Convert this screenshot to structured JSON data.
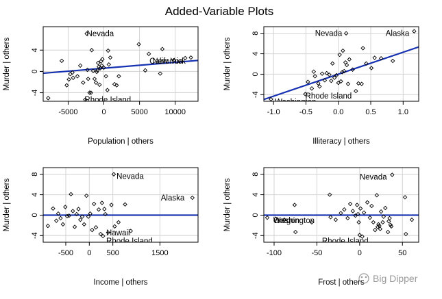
{
  "figure": {
    "title": "Added-Variable Plots",
    "watermark": "Big Dipper",
    "colors": {
      "fit_line": "#1530b0",
      "grid": "#d3d3d3",
      "points": "#000000",
      "watermark": "#9a9a9a"
    }
  },
  "chart_data": [
    {
      "type": "scatter",
      "xlabel": "Population | others",
      "ylabel": "Murder  | others",
      "xlim": [
        -8500,
        13200
      ],
      "ylim": [
        -5.6,
        8.4
      ],
      "xticks": [
        -5000,
        0,
        5000,
        10000
      ],
      "xtick_labels": [
        "-5000",
        "0",
        "5000",
        "10000"
      ],
      "yticks": [
        -4,
        0,
        4
      ],
      "ytick_labels": [
        "-4",
        "0",
        "4"
      ],
      "grid": true,
      "fit_line": {
        "intercept": 0.6,
        "slope": 0.000111
      },
      "annotations": [
        {
          "text": "Nevada",
          "x": -2400,
          "y": 7.1,
          "anchor": "start"
        },
        {
          "text": "California",
          "x": 6400,
          "y": 2.0,
          "anchor": "start"
        },
        {
          "text": "New York",
          "x": 6800,
          "y": 2.0,
          "anchor": "start"
        },
        {
          "text": "Rhode Island",
          "x": -2700,
          "y": -5.3,
          "anchor": "start"
        }
      ],
      "points": [
        [
          -7800,
          -5.0
        ],
        [
          -5900,
          2.0
        ],
        [
          -5200,
          -2.6
        ],
        [
          -4900,
          -1.5
        ],
        [
          -4700,
          -0.5
        ],
        [
          -4400,
          -0.2
        ],
        [
          -4300,
          -1.2
        ],
        [
          -3700,
          -0.9
        ],
        [
          -3300,
          1.1
        ],
        [
          -2900,
          -2.1
        ],
        [
          -2600,
          -5.3
        ],
        [
          -2400,
          7.1
        ],
        [
          -2300,
          0.3
        ],
        [
          -2200,
          -1.4
        ],
        [
          -2000,
          -4.0
        ],
        [
          -1800,
          -4.0
        ],
        [
          -1700,
          4.0
        ],
        [
          -1500,
          0.1
        ],
        [
          -1300,
          -1.4
        ],
        [
          -1100,
          -2.1
        ],
        [
          -1000,
          -0.1
        ],
        [
          -900,
          0.2
        ],
        [
          -800,
          1.6
        ],
        [
          -700,
          0.9
        ],
        [
          -600,
          -2.5
        ],
        [
          -500,
          0.6
        ],
        [
          -400,
          1.9
        ],
        [
          -300,
          1.1
        ],
        [
          -200,
          2.3
        ],
        [
          0,
          0.7
        ],
        [
          300,
          -0.9
        ],
        [
          500,
          -3.5
        ],
        [
          600,
          3.9
        ],
        [
          700,
          1.3
        ],
        [
          900,
          2.6
        ],
        [
          1500,
          -2.4
        ],
        [
          1800,
          -2.6
        ],
        [
          2100,
          -0.9
        ],
        [
          4900,
          5.1
        ],
        [
          5800,
          0.2
        ],
        [
          6300,
          3.3
        ],
        [
          7900,
          -0.4
        ],
        [
          8200,
          4.2
        ],
        [
          9800,
          2.1
        ],
        [
          11400,
          2.5
        ],
        [
          12200,
          2.6
        ]
      ]
    },
    {
      "type": "scatter",
      "xlabel": "Illiteracy | others",
      "ylabel": "Murder  | others",
      "xlim": [
        -1.15,
        1.24
      ],
      "ylim": [
        -5.3,
        9.3
      ],
      "xticks": [
        -1.0,
        -0.5,
        0.0,
        0.5,
        1.0
      ],
      "xtick_labels": [
        "-1.0",
        "-0.5",
        "0.0",
        "0.5",
        "1.0"
      ],
      "yticks": [
        -4,
        0,
        4,
        8
      ],
      "ytick_labels": [
        "-4",
        "0",
        "4",
        "8"
      ],
      "grid": true,
      "fit_line": {
        "intercept": 0.0,
        "slope": 4.3
      },
      "annotations": [
        {
          "text": "Nevada",
          "x": -0.36,
          "y": 8.0,
          "anchor": "start"
        },
        {
          "text": "Alaska",
          "x": 0.73,
          "y": 8.0,
          "anchor": "start"
        },
        {
          "text": "Rhode Island",
          "x": -0.51,
          "y": -4.2,
          "anchor": "start"
        },
        {
          "text": "Washington",
          "x": -0.98,
          "y": -5.4,
          "anchor": "start"
        }
      ],
      "points": [
        [
          -1.04,
          -4.9
        ],
        [
          -0.51,
          -3.9
        ],
        [
          -0.47,
          -1.5
        ],
        [
          -0.41,
          -2.8
        ],
        [
          -0.38,
          0.5
        ],
        [
          -0.36,
          -0.4
        ],
        [
          -0.31,
          -1.8
        ],
        [
          -0.29,
          -2.4
        ],
        [
          -0.25,
          0.1
        ],
        [
          -0.21,
          -1.2
        ],
        [
          -0.18,
          0.2
        ],
        [
          -0.14,
          -0.1
        ],
        [
          -0.11,
          -1.3
        ],
        [
          -0.09,
          2.1
        ],
        [
          -0.06,
          -0.7
        ],
        [
          -0.03,
          -0.2
        ],
        [
          0.0,
          -1.7
        ],
        [
          0.02,
          3.8
        ],
        [
          0.04,
          -1.4
        ],
        [
          0.06,
          0.4
        ],
        [
          0.07,
          4.6
        ],
        [
          0.09,
          0.6
        ],
        [
          0.11,
          2.3
        ],
        [
          0.12,
          8.0
        ],
        [
          0.13,
          1.8
        ],
        [
          0.15,
          -1.9
        ],
        [
          0.17,
          2.9
        ],
        [
          0.22,
          0.9
        ],
        [
          0.27,
          -3.3
        ],
        [
          0.31,
          -1.8
        ],
        [
          0.36,
          -1.9
        ],
        [
          0.38,
          5.1
        ],
        [
          0.43,
          2.1
        ],
        [
          0.51,
          1.2
        ],
        [
          0.56,
          3.2
        ],
        [
          0.66,
          3.1
        ],
        [
          0.84,
          2.6
        ],
        [
          1.17,
          8.4
        ]
      ]
    },
    {
      "type": "scatter",
      "xlabel": "Income | others",
      "ylabel": "Murder  | others",
      "xlim": [
        -980,
        2310
      ],
      "ylim": [
        -5.3,
        9.3
      ],
      "xticks": [
        -500,
        0,
        500,
        1500
      ],
      "xtick_labels": [
        "-500",
        "0",
        "500",
        "1500"
      ],
      "yticks": [
        -4,
        0,
        4,
        8
      ],
      "ytick_labels": [
        "-4",
        "0",
        "4",
        "8"
      ],
      "grid": true,
      "fit_line": {
        "intercept": 0.0,
        "slope": 0.0
      },
      "annotations": [
        {
          "text": "Nevada",
          "x": 580,
          "y": 7.6,
          "anchor": "start"
        },
        {
          "text": "Alaska",
          "x": 1520,
          "y": 3.4,
          "anchor": "start"
        },
        {
          "text": "Hawaii",
          "x": 360,
          "y": -3.4,
          "anchor": "start"
        },
        {
          "text": "Rhode Island",
          "x": 360,
          "y": -5.0,
          "anchor": "start"
        }
      ],
      "points": [
        [
          -880,
          -2.1
        ],
        [
          -770,
          1.3
        ],
        [
          -700,
          -1.1
        ],
        [
          -660,
          0.3
        ],
        [
          -610,
          -0.6
        ],
        [
          -560,
          -1.8
        ],
        [
          -510,
          1.6
        ],
        [
          -470,
          -0.2
        ],
        [
          -430,
          -0.1
        ],
        [
          -390,
          4.1
        ],
        [
          -350,
          0.8
        ],
        [
          -310,
          -2.3
        ],
        [
          -270,
          0.2
        ],
        [
          -230,
          1.2
        ],
        [
          -190,
          -0.9
        ],
        [
          -150,
          -0.3
        ],
        [
          -110,
          -1.8
        ],
        [
          -60,
          3.8
        ],
        [
          -20,
          -0.3
        ],
        [
          20,
          0.3
        ],
        [
          60,
          -2.9
        ],
        [
          100,
          2.2
        ],
        [
          140,
          -2.4
        ],
        [
          200,
          1.1
        ],
        [
          240,
          -3.7
        ],
        [
          270,
          2.4
        ],
        [
          290,
          -4.1
        ],
        [
          320,
          1.2
        ],
        [
          340,
          0.2
        ],
        [
          400,
          -3.4
        ],
        [
          470,
          2.0
        ],
        [
          520,
          8.0
        ],
        [
          540,
          -2.2
        ],
        [
          620,
          -1.4
        ],
        [
          760,
          2.1
        ],
        [
          880,
          -3.1
        ],
        [
          2190,
          3.4
        ]
      ]
    },
    {
      "type": "scatter",
      "xlabel": "Frost | others",
      "ylabel": "Murder  | others",
      "xlim": [
        -112,
        69
      ],
      "ylim": [
        -5.3,
        9.3
      ],
      "xticks": [
        -100,
        -50,
        0,
        50
      ],
      "xtick_labels": [
        "-100",
        "-50",
        "0",
        "50"
      ],
      "yticks": [
        -4,
        0,
        4,
        8
      ],
      "ytick_labels": [
        "-4",
        "0",
        "4",
        "8"
      ],
      "grid": true,
      "fit_line": {
        "intercept": 0.0,
        "slope": 0.0
      },
      "annotations": [
        {
          "text": "Nevada",
          "x": 0,
          "y": 7.5,
          "anchor": "start"
        },
        {
          "text": "Washington",
          "x": -101,
          "y": -1.0,
          "anchor": "start"
        },
        {
          "text": "Oregon",
          "x": -101,
          "y": -1.0,
          "anchor": "start"
        },
        {
          "text": "Rhode Island",
          "x": -44,
          "y": -5.0,
          "anchor": "start"
        }
      ],
      "points": [
        [
          -108,
          -0.5
        ],
        [
          -98,
          -0.7
        ],
        [
          -88,
          -0.9
        ],
        [
          -76,
          2.0
        ],
        [
          -75,
          -3.3
        ],
        [
          -56,
          -1.4
        ],
        [
          -35,
          4.0
        ],
        [
          -34,
          -0.4
        ],
        [
          -28,
          -0.9
        ],
        [
          -22,
          0.4
        ],
        [
          -18,
          1.1
        ],
        [
          -14,
          -0.6
        ],
        [
          -11,
          2.2
        ],
        [
          -8,
          0.8
        ],
        [
          -5,
          -0.1
        ],
        [
          -3,
          2.0
        ],
        [
          -2,
          0.2
        ],
        [
          -1,
          -1.4
        ],
        [
          0,
          -3.9
        ],
        [
          1,
          1.3
        ],
        [
          3,
          -4.2
        ],
        [
          5,
          0.5
        ],
        [
          9,
          2.5
        ],
        [
          12,
          -0.5
        ],
        [
          14,
          1.8
        ],
        [
          16,
          -1.4
        ],
        [
          18,
          -2.9
        ],
        [
          20,
          3.9
        ],
        [
          21,
          -2.3
        ],
        [
          22,
          -1.8
        ],
        [
          23,
          -2.1
        ],
        [
          24,
          -2.7
        ],
        [
          25,
          0.7
        ],
        [
          27,
          -1.4
        ],
        [
          28,
          -0.3
        ],
        [
          30,
          1.4
        ],
        [
          33,
          -3.3
        ],
        [
          34,
          -1.2
        ],
        [
          35,
          -0.6
        ],
        [
          36,
          -1.9
        ],
        [
          37,
          -2.2
        ],
        [
          38,
          7.9
        ],
        [
          53,
          3.5
        ],
        [
          54,
          -3.7
        ],
        [
          61,
          -0.9
        ]
      ]
    }
  ]
}
